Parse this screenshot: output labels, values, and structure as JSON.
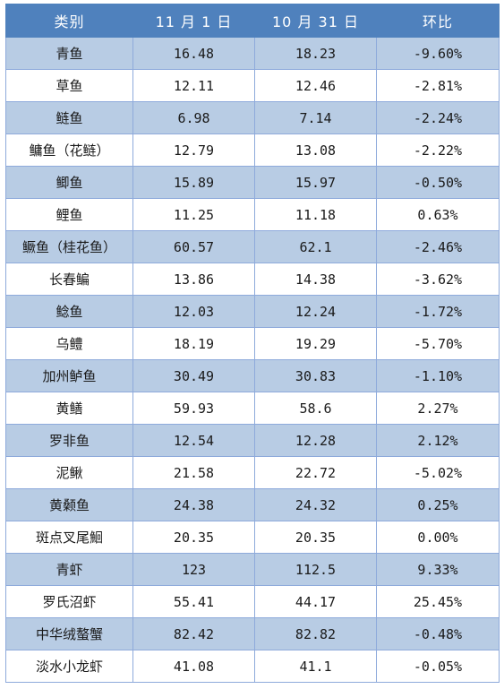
{
  "headers": [
    "类别",
    "11 月 1 日",
    "10 月 31 日",
    "环比"
  ],
  "rows": [
    [
      "青鱼",
      "16.48",
      "18.23",
      "-9.60%"
    ],
    [
      "草鱼",
      "12.11",
      "12.46",
      "-2.81%"
    ],
    [
      "鲢鱼",
      "6.98",
      "7.14",
      "-2.24%"
    ],
    [
      "鳙鱼（花鲢）",
      "12.79",
      "13.08",
      "-2.22%"
    ],
    [
      "鲫鱼",
      "15.89",
      "15.97",
      "-0.50%"
    ],
    [
      "鲤鱼",
      "11.25",
      "11.18",
      "0.63%"
    ],
    [
      "鳜鱼（桂花鱼）",
      "60.57",
      "62.1",
      "-2.46%"
    ],
    [
      "长春鳊",
      "13.86",
      "14.38",
      "-3.62%"
    ],
    [
      "鲶鱼",
      "12.03",
      "12.24",
      "-1.72%"
    ],
    [
      "乌鳢",
      "18.19",
      "19.29",
      "-5.70%"
    ],
    [
      "加州鲈鱼",
      "30.49",
      "30.83",
      "-1.10%"
    ],
    [
      "黄鳝",
      "59.93",
      "58.6",
      "2.27%"
    ],
    [
      "罗非鱼",
      "12.54",
      "12.28",
      "2.12%"
    ],
    [
      "泥鳅",
      "21.58",
      "22.72",
      "-5.02%"
    ],
    [
      "黄颡鱼",
      "24.38",
      "24.32",
      "0.25%"
    ],
    [
      "斑点叉尾鮰",
      "20.35",
      "20.35",
      "0.00%"
    ],
    [
      "青虾",
      "123",
      "112.5",
      "9.33%"
    ],
    [
      "罗氏沼虾",
      "55.41",
      "44.17",
      "25.45%"
    ],
    [
      "中华绒螯蟹",
      "82.42",
      "82.82",
      "-0.48%"
    ],
    [
      "淡水小龙虾",
      "41.08",
      "41.1",
      "-0.05%"
    ]
  ],
  "colors": {
    "header_bg": "#4f81bd",
    "header_text": "#ffffff",
    "band_row_bg": "#b8cce4",
    "plain_row_bg": "#ffffff",
    "grid_line": "#8eaadb"
  }
}
